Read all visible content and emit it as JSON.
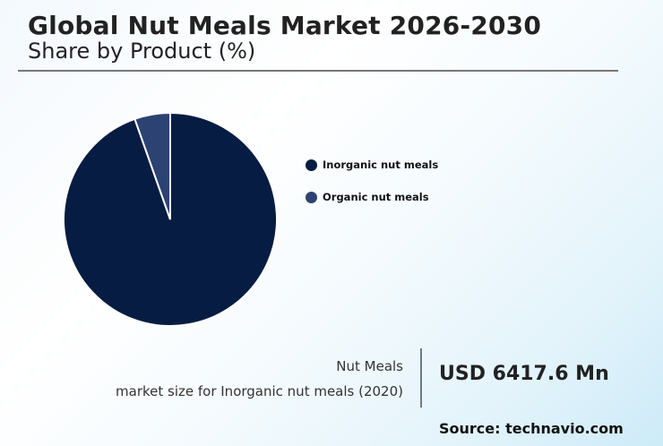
{
  "header": {
    "title": "Global Nut Meals Market 2026-2030",
    "subtitle": "Share by Product (%)"
  },
  "legend": {
    "items": [
      {
        "label": "Inorganic nut meals",
        "color": "#071c42"
      },
      {
        "label": "Organic nut meals",
        "color": "#2c4272"
      }
    ]
  },
  "kpi": {
    "line1": "Nut Meals",
    "line2": "market size for Inorganic nut meals (2020)",
    "value": "USD 6417.6 Mn"
  },
  "footer": {
    "source": "Source: technavio.com"
  },
  "chart_data": {
    "type": "pie",
    "title": "Global Nut Meals Market 2026-2030",
    "subtitle": "Share by Product (%)",
    "categories": [
      "Inorganic nut meals",
      "Organic nut meals"
    ],
    "values": [
      94.6,
      5.4
    ],
    "colors": [
      "#071c42",
      "#2c4272"
    ],
    "legend_position": "right",
    "start_angle": "12 o'clock, clockwise"
  }
}
